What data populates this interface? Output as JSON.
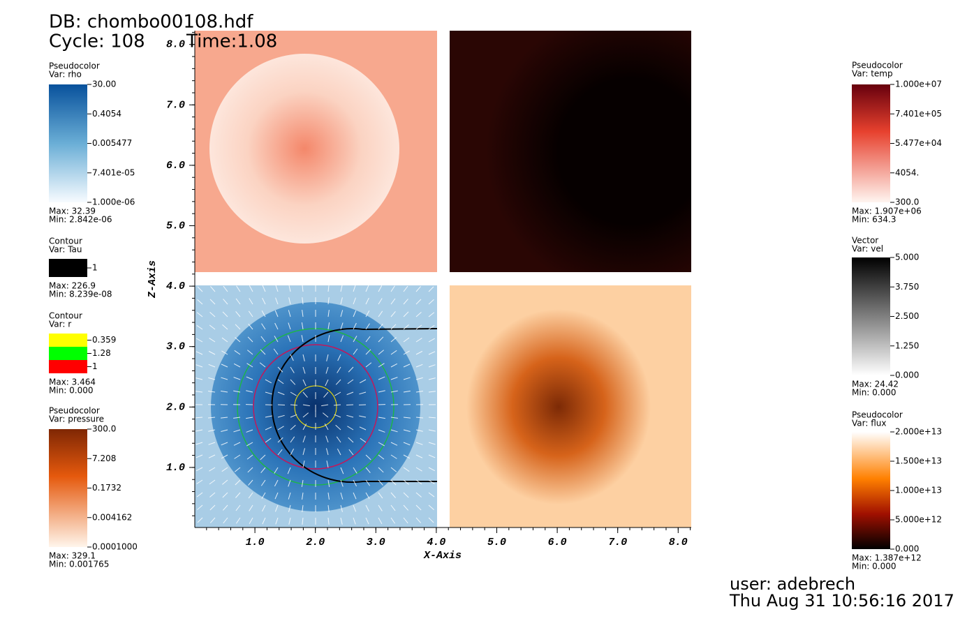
{
  "header": {
    "db": "DB: chombo00108.hdf",
    "cycle": "Cycle: 108",
    "time": "Time:1.08"
  },
  "legends": [
    {
      "plot": "Pseudocolor",
      "var": "Var: rho",
      "ticks": [
        "30.00",
        "0.4054",
        "0.005477",
        "7.401e-05",
        "1.000e-06"
      ],
      "max": "Max:  32.39",
      "min": "Min:  2.842e-06"
    },
    {
      "plot": "Contour",
      "var": "Var: Tau",
      "ticks": [
        "1"
      ],
      "max": "Max:  226.9",
      "min": "Min:  8.239e-08"
    },
    {
      "plot": "Contour",
      "var": "Var: r",
      "ticks": [
        "0.359",
        "1.28",
        "1"
      ],
      "max": "Max:  3.464",
      "min": "Min:  0.000"
    },
    {
      "plot": "Pseudocolor",
      "var": "Var: pressure",
      "ticks": [
        "300.0",
        "7.208",
        "0.1732",
        "0.004162",
        "0.0001000"
      ],
      "max": "Max:  329.1",
      "min": "Min:  0.001765"
    },
    {
      "plot": "Pseudocolor",
      "var": "Var: temp",
      "ticks": [
        "1.000e+07",
        "7.401e+05",
        "5.477e+04",
        "4054.",
        "300.0"
      ],
      "max": "Max:  1.907e+06",
      "min": "Min:  634.3"
    },
    {
      "plot": "Vector",
      "var": "Var: vel",
      "ticks": [
        "5.000",
        "3.750",
        "2.500",
        "1.250",
        "0.000"
      ],
      "max": "Max:  24.42",
      "min": "Min:  0.000"
    },
    {
      "plot": "Pseudocolor",
      "var": "Var: flux",
      "ticks": [
        "2.000e+13",
        "1.500e+13",
        "1.000e+13",
        "5.000e+12",
        "0.000"
      ],
      "max": "Max:  1.387e+12",
      "min": "Min:  0.000"
    }
  ],
  "axes": {
    "x_title": "X-Axis",
    "y_title": "Z-Axis",
    "xticks": [
      "1.0",
      "2.0",
      "3.0",
      "4.0",
      "5.0",
      "6.0",
      "7.0",
      "8.0"
    ],
    "yticks": [
      "1.0",
      "2.0",
      "3.0",
      "4.0",
      "5.0",
      "6.0",
      "7.0",
      "8.0"
    ]
  },
  "footer": {
    "user": "user: adebrech",
    "date": "Thu Aug 31 10:56:16 2017"
  }
}
